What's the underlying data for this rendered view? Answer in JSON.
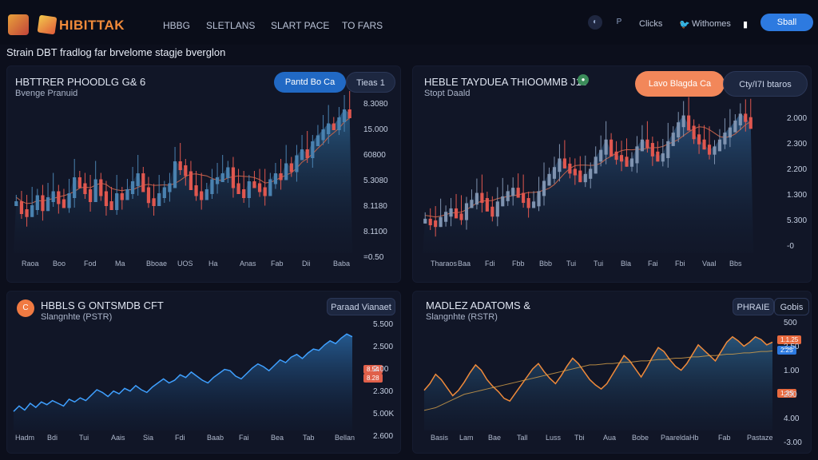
{
  "header": {
    "brand": "HIBITTAK",
    "nav": [
      "HBBG",
      "SLETLANS",
      "SLART PACE",
      "TO FARS"
    ],
    "icon_p": "P",
    "clicks": "Clicks",
    "twitter_label": "Withomes",
    "signin": "Sball"
  },
  "subtitle": "Strain DBT fradlog far brvelome stagje bverglon",
  "panels": {
    "p1": {
      "title": "HBTTRER PHOODLG G& 6",
      "sub": "Bvenge Pranuid",
      "btn_primary": "Pantd Bo Ca",
      "btn_secondary": "Tieas 1",
      "y_labels": [
        "8.3080",
        "15.000",
        "60800",
        "5.3080",
        "8.1180",
        "8.1100",
        "=0.50"
      ],
      "x_labels": [
        "Raoa",
        "Boo",
        "Fod",
        "Ma",
        "Bboae",
        "UOS",
        "Ha",
        "Anas",
        "Fab",
        "Dii",
        "Baba"
      ]
    },
    "p2": {
      "title": "HEBLE TAYDUEA THIOOMMB J15",
      "sub": "Stopt Daald",
      "btn_primary": "Lavo Blagda Ca",
      "btn_secondary": "Cty/I7I btaros",
      "y_labels": [
        "2.000",
        "2.300",
        "2.200",
        "1.300",
        "5.300",
        "-0"
      ],
      "x_labels": [
        "Tharaos",
        "Baa",
        "Fdi",
        "Fbb",
        "Bbb",
        "Tui",
        "Tui",
        "Bla",
        "Fai",
        "Fbi",
        "Vaal",
        "Bbs"
      ]
    },
    "p3": {
      "badge": "C",
      "title": "HBBLS G ONTSMDB CFT",
      "sub": "Slangnhte (PSTR)",
      "btn": "Paraad Vianaet",
      "y_labels": [
        "5.500",
        "2.500",
        "2.00",
        "2.300",
        "5.00K",
        "2.600"
      ],
      "tags": [
        "8.54",
        "8.28"
      ],
      "x_labels": [
        "Hadm",
        "Bdi",
        "Tui",
        "Aais",
        "Sia",
        "Fdi",
        "Baab",
        "Fai",
        "Bea",
        "Tab",
        "Bellan"
      ]
    },
    "p4": {
      "title": "MADLEZ ADATOMS &",
      "sub": "Slangnhte (RSTR)",
      "btn_a": "PHRAIE",
      "btn_b": "Gobis",
      "y_labels": [
        "500",
        "2.50",
        "1.00",
        "200",
        "4.00",
        "-3.00"
      ],
      "tags": [
        "1.1.25",
        "2.25",
        "1.2S"
      ],
      "x_labels": [
        "Basis",
        "Lam",
        "Bae",
        "Tall",
        "Luss",
        "Tbi",
        "Aua",
        "Bobe",
        "Paarelda",
        "Hb",
        "Fab",
        "Pastaze"
      ]
    }
  },
  "colors": {
    "accent_blue": "#2d7ae0",
    "candle_up": "#4a82b0",
    "candle_down": "#e0574f",
    "line_blue": "#3fa0ff",
    "line_orange": "#f08a3a"
  },
  "chart_data": [
    {
      "type": "candlestick",
      "title": "HBTTRER PHOODLG G& 6",
      "values": [
        52,
        44,
        41,
        48,
        58,
        47,
        56,
        62,
        54,
        50,
        60,
        76,
        70,
        64,
        56,
        74,
        62,
        52,
        48,
        60,
        58,
        64,
        72,
        80,
        66,
        55,
        52,
        60,
        66,
        70,
        92,
        88,
        82,
        68,
        62,
        58,
        64,
        74,
        76,
        80,
        86,
        70,
        64,
        60,
        72,
        70,
        66,
        62,
        74,
        80,
        78,
        90,
        86,
        98,
        104,
        100,
        112,
        118,
        124,
        130,
        128,
        136,
        144,
        140
      ],
      "ylim": [
        0,
        160
      ]
    },
    {
      "type": "candlestick",
      "title": "HEBLE TAYDUEA THIOOMMB J15",
      "values": [
        40,
        38,
        36,
        42,
        48,
        52,
        46,
        44,
        58,
        62,
        70,
        64,
        54,
        48,
        60,
        66,
        72,
        76,
        70,
        64,
        58,
        60,
        72,
        84,
        92,
        100,
        110,
        104,
        98,
        96,
        88,
        92,
        98,
        112,
        120,
        132,
        118,
        114,
        112,
        106,
        110,
        124,
        132,
        128,
        118,
        112,
        116,
        130,
        140,
        152,
        160,
        148,
        138,
        132,
        126,
        120,
        124,
        132,
        140,
        146,
        154,
        162,
        158,
        150
      ],
      "ylim": [
        0,
        180
      ]
    },
    {
      "type": "area",
      "title": "HBBLS G ONTSMDB CFT",
      "values": [
        28,
        36,
        30,
        40,
        34,
        42,
        38,
        44,
        40,
        36,
        46,
        42,
        48,
        44,
        52,
        60,
        56,
        50,
        58,
        54,
        62,
        58,
        66,
        60,
        56,
        64,
        70,
        76,
        70,
        74,
        82,
        78,
        86,
        80,
        74,
        70,
        78,
        84,
        90,
        88,
        80,
        76,
        84,
        92,
        98,
        94,
        88,
        96,
        104,
        100,
        108,
        112,
        106,
        114,
        120,
        118,
        126,
        132,
        128,
        136,
        142,
        138
      ],
      "ylim": [
        0,
        160
      ]
    },
    {
      "type": "area",
      "title": "MADLEZ ADATOMS &",
      "series": [
        {
          "values": [
            60,
            70,
            84,
            76,
            64,
            52,
            60,
            72,
            86,
            98,
            90,
            76,
            66,
            58,
            48,
            44,
            56,
            68,
            80,
            92,
            100,
            88,
            78,
            70,
            82,
            96,
            108,
            100,
            88,
            76,
            68,
            62,
            70,
            84,
            98,
            112,
            104,
            92,
            80,
            94,
            110,
            124,
            118,
            106,
            96,
            90,
            100,
            114,
            128,
            120,
            112,
            104,
            118,
            132,
            140,
            134,
            126,
            132,
            140,
            136,
            128,
            132
          ]
        },
        {
          "values": [
            30,
            32,
            34,
            38,
            42,
            46,
            50,
            54,
            56,
            58,
            60,
            62,
            64,
            66,
            68,
            70,
            72,
            74,
            76,
            78,
            80,
            82,
            84,
            86,
            88,
            90,
            92,
            94,
            96,
            98,
            98,
            99,
            100,
            100,
            101,
            102,
            102,
            103,
            104,
            104,
            105,
            106,
            106,
            107,
            108,
            108,
            109,
            110,
            110,
            111,
            112,
            112,
            113,
            114,
            114,
            115,
            116,
            116,
            117,
            118,
            118,
            119
          ]
        }
      ],
      "ylim": [
        0,
        160
      ]
    }
  ]
}
